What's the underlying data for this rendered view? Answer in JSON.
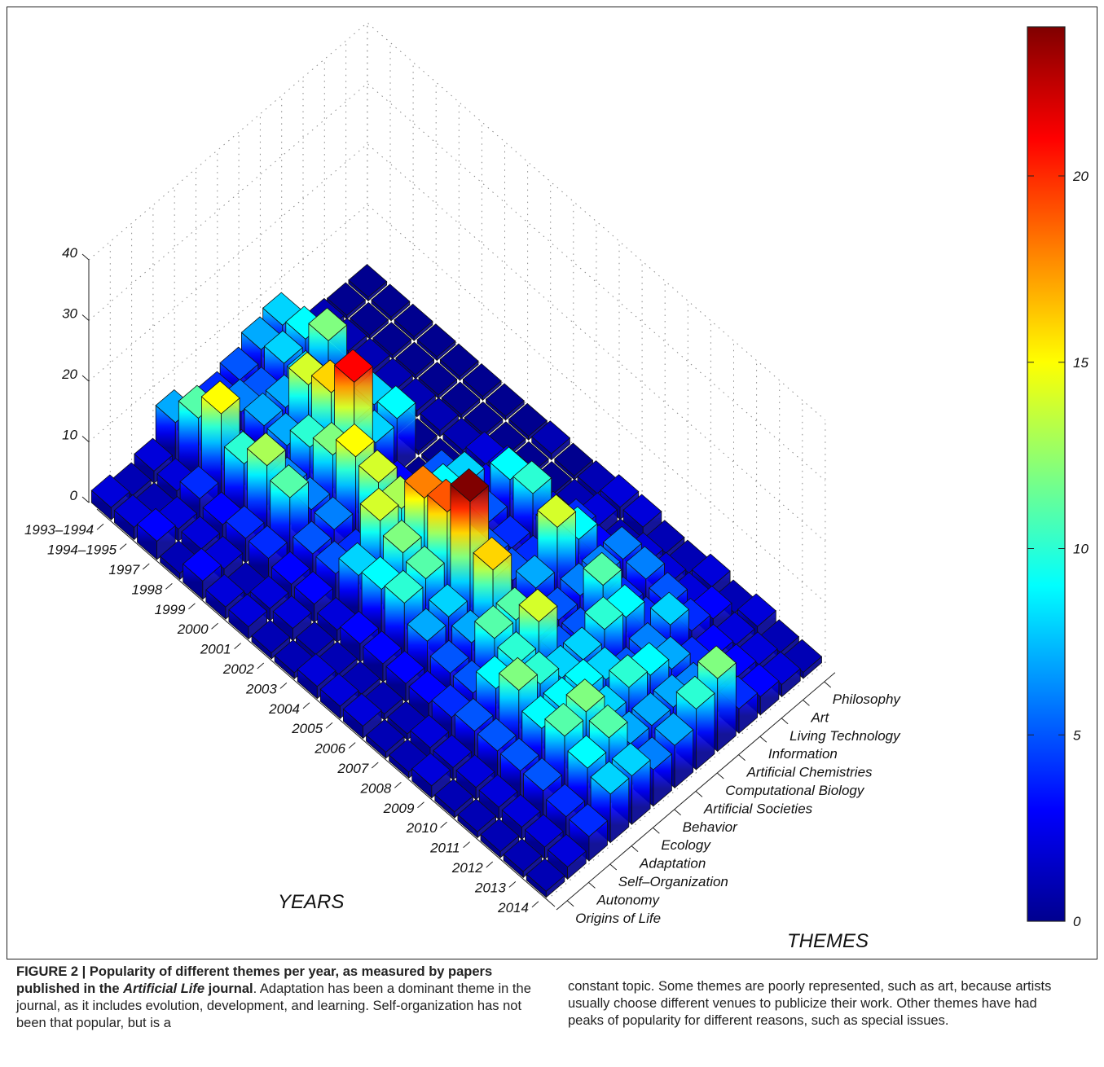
{
  "chart_data": {
    "type": "bar3d",
    "title": "",
    "z_axis": {
      "range": [
        0,
        40
      ],
      "ticks": [
        0,
        10,
        20,
        30,
        40
      ]
    },
    "colorbar": {
      "range": [
        0,
        24
      ],
      "ticks": [
        "0",
        "5",
        "10",
        "15",
        "20"
      ],
      "colormap": "jet"
    },
    "years_label": "YEARS",
    "themes_label": "THEMES",
    "years": [
      "1993–1994",
      "1994–1995",
      "1997",
      "1998",
      "1999",
      "2000",
      "2001",
      "2002",
      "2003",
      "2004",
      "2005",
      "2006",
      "2007",
      "2008",
      "2009",
      "2010",
      "2011",
      "2012",
      "2013",
      "2014"
    ],
    "themes": [
      "Origins of Life",
      "Autonomy",
      "Self–Organization",
      "Adaptation",
      "Ecology",
      "Behavior",
      "Artificial Societies",
      "Computational Biology",
      "Artificial Chemistries",
      "Information",
      "Living Technology",
      "Art",
      "Philosophy"
    ],
    "values": [
      [
        2,
        1,
        2,
        7,
        3,
        4,
        5,
        7,
        8,
        0,
        1,
        0,
        0
      ],
      [
        2,
        1,
        2,
        11,
        3,
        6,
        5,
        8,
        9,
        0,
        1,
        0,
        0
      ],
      [
        3,
        2,
        4,
        15,
        4,
        7,
        7,
        8,
        12,
        0,
        1,
        0,
        0
      ],
      [
        1,
        2,
        3,
        10,
        4,
        7,
        14,
        8,
        8,
        0,
        1,
        0,
        0
      ],
      [
        3,
        2,
        4,
        13,
        6,
        10,
        16,
        8,
        8,
        0,
        1,
        0,
        0
      ],
      [
        2,
        1,
        4,
        11,
        6,
        12,
        21,
        8,
        9,
        0,
        1,
        0,
        0
      ],
      [
        2,
        2,
        3,
        5,
        6,
        15,
        6,
        3,
        0,
        0,
        1,
        0,
        0
      ],
      [
        1,
        2,
        3,
        5,
        4,
        14,
        4,
        4,
        5,
        0,
        2,
        0,
        0
      ],
      [
        1,
        1,
        2,
        8,
        14,
        13,
        10,
        9,
        8,
        3,
        3,
        0,
        1
      ],
      [
        2,
        1,
        3,
        9,
        12,
        18,
        8,
        3,
        5,
        9,
        1,
        0,
        0
      ],
      [
        2,
        1,
        3,
        10,
        11,
        19,
        9,
        5,
        4,
        10,
        2,
        1,
        1
      ],
      [
        2,
        1,
        3,
        7,
        8,
        24,
        8,
        5,
        4,
        7,
        4,
        2,
        2
      ],
      [
        1,
        1,
        3,
        5,
        7,
        16,
        4,
        7,
        14,
        9,
        3,
        1,
        2
      ],
      [
        1,
        2,
        4,
        5,
        11,
        11,
        5,
        5,
        6,
        6,
        6,
        2,
        1
      ],
      [
        2,
        2,
        5,
        9,
        10,
        14,
        5,
        5,
        11,
        4,
        6,
        2,
        1
      ],
      [
        1,
        2,
        5,
        12,
        10,
        8,
        8,
        10,
        9,
        4,
        5,
        2,
        2
      ],
      [
        1,
        2,
        5,
        9,
        9,
        9,
        8,
        5,
        6,
        8,
        4,
        3,
        1
      ],
      [
        1,
        2,
        5,
        11,
        12,
        8,
        10,
        9,
        7,
        4,
        3,
        2,
        2
      ],
      [
        1,
        2,
        4,
        9,
        11,
        7,
        7,
        7,
        6,
        4,
        3,
        2,
        1
      ],
      [
        1,
        2,
        4,
        8,
        8,
        6,
        7,
        10,
        12,
        4,
        3,
        2,
        1
      ]
    ]
  },
  "caption": {
    "figure_label": "FIGURE 2 | Popularity of different themes per year, as measured by papers published in the ",
    "journal": "Artificial Life",
    "figure_label_end": " journal",
    "text_left": ". Adaptation has been a dominant theme in the journal, as it includes evolution, development, and learning. Self-organization has not been that popular, but is a",
    "text_right": "constant topic. Some themes are poorly represented, such as art, because artists usually choose different venues to publicize their work. Other themes have had peaks of popularity for different reasons, such as special issues."
  }
}
